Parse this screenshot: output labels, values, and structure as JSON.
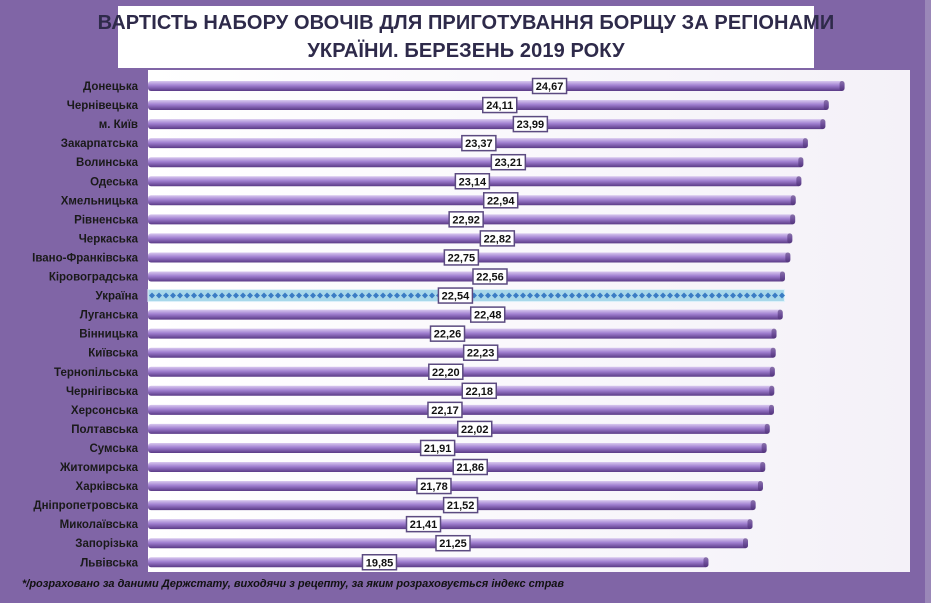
{
  "title": {
    "line1": "ВАРТІСТЬ НАБОРУ ОВОЧІВ ДЛЯ ПРИГОТУВАННЯ БОРЩУ ЗА РЕГІОНАМИ",
    "line2": "УКРАЇНИ. БЕРЕЗЕНЬ  2019 РОКУ"
  },
  "footnote": "*/розраховано  за даними Держстату, виходячи з рецепту, за яким розраховується індекс  страв",
  "colors": {
    "frame_background": "#8065a6",
    "bar_top": "#d9c9ef",
    "bar_middle": "#a07fd0",
    "bar_bottom": "#5a3a86",
    "highlight_bar": "#a8d8ea",
    "highlight_marker": "#3a7cc4",
    "value_box_border": "#5b4a80"
  },
  "chart_data": {
    "type": "bar",
    "orientation": "horizontal",
    "title": "ВАРТІСТЬ НАБОРУ ОВОЧІВ ДЛЯ ПРИГОТУВАННЯ БОРЩУ ЗА РЕГІОНАМИ УКРАЇНИ. БЕРЕЗЕНЬ  2019 РОКУ",
    "xlabel": "",
    "ylabel": "",
    "xlim": [
      0,
      25.5
    ],
    "grid": false,
    "highlight": "Україна",
    "categories": [
      "Донецька",
      "Чернівецька",
      "м. Київ",
      "Закарпатська",
      "Волинська",
      "Одеська",
      "Хмельницька",
      "Рівненська",
      "Черкаська",
      "Івано-Франківська",
      "Кіровоградська",
      "Україна",
      "Луганська",
      "Вінницька",
      "Київська",
      "Тернопільська",
      "Чернігівська",
      "Херсонська",
      "Полтавська",
      "Сумська",
      "Житомирська",
      "Харківська",
      "Дніпропетровська",
      "Миколаївська",
      "Запорізька",
      "Львівська"
    ],
    "values": [
      24.67,
      24.11,
      23.99,
      23.37,
      23.21,
      23.14,
      22.94,
      22.92,
      22.82,
      22.75,
      22.56,
      22.54,
      22.48,
      22.26,
      22.23,
      22.2,
      22.18,
      22.17,
      22.02,
      21.91,
      21.86,
      21.78,
      21.52,
      21.41,
      21.25,
      19.85
    ],
    "value_labels": [
      "24,67",
      "24,11",
      "23,99",
      "23,37",
      "23,21",
      "23,14",
      "22,94",
      "22,92",
      "22,82",
      "22,75",
      "22,56",
      "22,54",
      "22,48",
      "22,26",
      "22,23",
      "22,20",
      "22,18",
      "22,17",
      "22,02",
      "21,91",
      "21,86",
      "21,78",
      "21,52",
      "21,41",
      "21,25",
      "19,85"
    ]
  }
}
